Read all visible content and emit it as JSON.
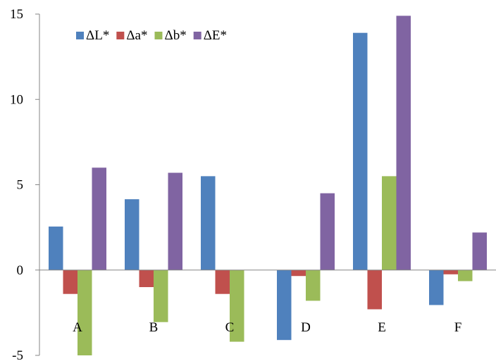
{
  "chart_data": {
    "type": "bar",
    "categories": [
      "A",
      "B",
      "C",
      "D",
      "E",
      "F"
    ],
    "series": [
      {
        "name": "ΔL*",
        "color": "#4F81BD",
        "values": [
          2.55,
          4.15,
          5.5,
          -4.1,
          13.9,
          -2.05
        ]
      },
      {
        "name": "Δa*",
        "color": "#C0504D",
        "values": [
          -1.4,
          -1.0,
          -1.4,
          -0.35,
          -2.3,
          -0.25
        ]
      },
      {
        "name": "Δb*",
        "color": "#9BBB59",
        "values": [
          -5.0,
          -3.05,
          -4.2,
          -1.8,
          5.5,
          -0.65
        ]
      },
      {
        "name": "ΔE*",
        "color": "#8064A2",
        "values": [
          6.0,
          5.7,
          0,
          4.5,
          14.9,
          2.2
        ]
      }
    ],
    "yticks": [
      "15",
      "10",
      "5",
      "0",
      "-5"
    ],
    "ytick_values": [
      15,
      10,
      5,
      0,
      -5
    ],
    "ylim": [
      -5,
      15
    ],
    "title": "",
    "xlabel": "",
    "ylabel": "",
    "grid": false,
    "legend_position": "top-left"
  }
}
